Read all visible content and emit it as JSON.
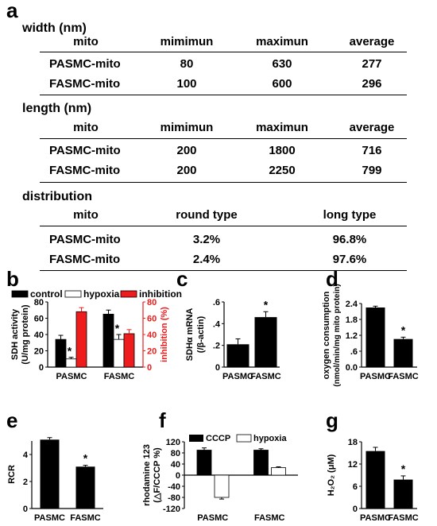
{
  "panel_a": {
    "letter": "a",
    "sections": [
      {
        "title": "width (nm)",
        "headers": [
          "mito",
          "mimimun",
          "maximun",
          "average"
        ],
        "rows": [
          [
            "PASMC-mito",
            "80",
            "630",
            "277"
          ],
          [
            "FASMC-mito",
            "100",
            "600",
            "296"
          ]
        ]
      },
      {
        "title": "length (nm)",
        "headers": [
          "mito",
          "mimimun",
          "maximun",
          "average"
        ],
        "rows": [
          [
            "PASMC-mito",
            "200",
            "1800",
            "716"
          ],
          [
            "FASMC-mito",
            "200",
            "2250",
            "799"
          ]
        ]
      },
      {
        "title": "distribution",
        "headers": [
          "mito",
          "round type",
          "long type"
        ],
        "rows": [
          [
            "PASMC-mito",
            "3.2%",
            "96.8%"
          ],
          [
            "FASMC-mito",
            "2.4%",
            "97.6%"
          ]
        ]
      }
    ]
  },
  "chart_data": [
    {
      "id": "b",
      "type": "bar",
      "letter": "b",
      "categories": [
        "PASMC",
        "FASMC"
      ],
      "ylabel_lines": [
        "SDH activity",
        "(U/mg protein)"
      ],
      "ylim": [
        0,
        80
      ],
      "yticks": [
        "0",
        "20",
        "40",
        "60",
        "80"
      ],
      "y2label": "inhibition (%)",
      "y2lim": [
        0,
        80
      ],
      "y2ticks": [
        "0",
        "20",
        "40",
        "60",
        "80"
      ],
      "legend": [
        "control",
        "hypoxia",
        "inhibition"
      ],
      "series": [
        {
          "name": "control",
          "axis": "left",
          "values": [
            34,
            65
          ],
          "err": [
            5,
            5
          ]
        },
        {
          "name": "hypoxia",
          "axis": "left",
          "values": [
            10,
            34
          ],
          "err": [
            2,
            6
          ]
        },
        {
          "name": "inhibition",
          "axis": "right",
          "values": [
            68,
            41
          ],
          "err": [
            5,
            5
          ]
        }
      ],
      "annotations": [
        "*",
        "*"
      ],
      "colors": {
        "control": "#000000",
        "hypoxia": "#ffffff",
        "inhibition": "#ee1c1c"
      }
    },
    {
      "id": "c",
      "type": "bar",
      "letter": "c",
      "categories": [
        "PASMC",
        "FASMC"
      ],
      "ylabel_lines": [
        "SDHα mRNA",
        "(/β-actin)"
      ],
      "ylim": [
        0,
        0.6
      ],
      "yticks": [
        "0",
        ".2",
        ".4",
        ".6"
      ],
      "series": [
        {
          "values": [
            0.21,
            0.46
          ],
          "err": [
            0.05,
            0.05
          ]
        }
      ],
      "annotations": [
        "",
        "*"
      ]
    },
    {
      "id": "d",
      "type": "bar",
      "letter": "d",
      "categories": [
        "PASMC",
        "FASMC"
      ],
      "ylabel_lines": [
        "oxygen consumption",
        "(nmol/min/mg mito protein)"
      ],
      "ylim": [
        0,
        2.4
      ],
      "yticks": [
        "0.0",
        "1.2",
        "1.8",
        "2.4"
      ],
      "ytick_values": [
        0,
        1.2,
        1.8,
        2.4
      ],
      "yticks_minor": [
        ".6"
      ],
      "series": [
        {
          "values": [
            2.25,
            1.06
          ],
          "err": [
            0.05,
            0.07
          ]
        }
      ],
      "annotations": [
        "",
        "*"
      ]
    },
    {
      "id": "e",
      "type": "bar",
      "letter": "e",
      "categories": [
        "PASMC",
        "FASMC"
      ],
      "ylabel_lines": [
        "RCR"
      ],
      "ylim": [
        0,
        5
      ],
      "yticks": [
        "0",
        "2",
        "4"
      ],
      "ytick_values": [
        0,
        2,
        4
      ],
      "series": [
        {
          "values": [
            5.1,
            3.1
          ],
          "err": [
            0.15,
            0.1
          ]
        }
      ],
      "annotations": [
        "",
        "*"
      ]
    },
    {
      "id": "f",
      "type": "bar",
      "letter": "f",
      "categories": [
        "PASMC",
        "FASMC"
      ],
      "ylabel_lines": [
        "rhodamine 123",
        "(△F/CCCP %)"
      ],
      "ylim": [
        -120,
        120
      ],
      "yticks": [
        "120",
        "80",
        "40",
        "0",
        "-40",
        "-80",
        "-120"
      ],
      "ytick_values": [
        120,
        80,
        40,
        0,
        -40,
        -80,
        -120
      ],
      "legend": [
        "CCCP",
        "hypoxia"
      ],
      "series": [
        {
          "name": "CCCP",
          "values": [
            90,
            90
          ],
          "err": [
            8,
            5
          ]
        },
        {
          "name": "hypoxia",
          "values": [
            -80,
            27
          ],
          "err": [
            6,
            3
          ]
        }
      ]
    },
    {
      "id": "g",
      "type": "bar",
      "letter": "g",
      "categories": [
        "PASMC",
        "FASMC"
      ],
      "ylabel_lines": [
        "H₂O₂ (μM)"
      ],
      "ylim": [
        0,
        18
      ],
      "yticks": [
        "0",
        "6",
        "12",
        "18"
      ],
      "ytick_values": [
        0,
        6,
        12,
        18
      ],
      "series": [
        {
          "values": [
            15.5,
            7.8
          ],
          "err": [
            1.0,
            1.0
          ]
        }
      ],
      "annotations": [
        "",
        "*"
      ]
    }
  ]
}
